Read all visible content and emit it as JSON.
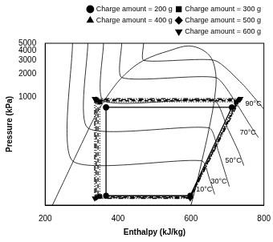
{
  "chart_data": {
    "type": "line",
    "xlabel": "Enthalpy (kJ/kg)",
    "ylabel": "Pressure (kPa)",
    "log": "y",
    "grid": false,
    "legend": "top-right",
    "xlim": [
      200,
      800
    ],
    "xticks": [
      200,
      400,
      600,
      800
    ],
    "ylim": [
      40,
      5000
    ],
    "yticks": [
      1000,
      2000,
      3000,
      4000,
      5000
    ],
    "series": [
      {
        "name": "Charge amount = 200 g",
        "color": "#000000",
        "marker": "circle",
        "line_style": "solid",
        "x": [
          367,
          367,
          598,
          712,
          367
        ],
        "values": [
          740,
          53,
          53,
          740,
          740
        ]
      },
      {
        "name": "Charge amount = 300 g",
        "color": "#000000",
        "marker": "square",
        "line_style": "dotted",
        "x": [
          350,
          350,
          598,
          724,
          350
        ],
        "values": [
          870,
          52,
          52,
          870,
          870
        ]
      },
      {
        "name": "Charge amount = 400 g",
        "color": "#000000",
        "marker": "triangle",
        "line_style": "dashed",
        "x": [
          345,
          345,
          598,
          728,
          345
        ],
        "values": [
          900,
          51,
          51,
          900,
          900
        ]
      },
      {
        "name": "Charge amount = 500 g",
        "color": "#000000",
        "marker": "diamond",
        "line_style": "dash-dot",
        "x": [
          340,
          340,
          598,
          732,
          340
        ],
        "values": [
          930,
          50,
          50,
          930,
          930
        ]
      },
      {
        "name": "Charge amount = 600 g",
        "color": "#000000",
        "marker": "triangle-down",
        "line_style": "dash-dot-dot",
        "x": [
          336,
          336,
          598,
          736,
          336
        ],
        "values": [
          960,
          49,
          49,
          960,
          960
        ]
      }
    ],
    "saturation_dome": {
      "color": "#000000",
      "x": [
        220,
        260,
        300,
        340,
        380,
        420,
        470,
        540,
        600,
        650,
        668,
        665,
        650,
        630,
        610,
        600
      ],
      "values": [
        40,
        100,
        250,
        600,
        1200,
        2000,
        3000,
        4000,
        4600,
        3500,
        2000,
        1000,
        400,
        150,
        60,
        40
      ]
    },
    "isotherms": [
      {
        "name": "10°C",
        "color": "#000000",
        "x": [
          275,
          275,
          630,
          650,
          665
        ],
        "values": [
          5000,
          150,
          150,
          90,
          55
        ]
      },
      {
        "name": "30°C",
        "color": "#000000",
        "x": [
          317,
          317,
          650,
          675,
          695,
          705
        ],
        "values": [
          5000,
          400,
          400,
          200,
          100,
          70
        ]
      },
      {
        "name": "50°C",
        "color": "#000000",
        "x": [
          360,
          360,
          664,
          700,
          730,
          745
        ],
        "values": [
          5000,
          900,
          900,
          400,
          200,
          130
        ]
      },
      {
        "name": "70°C",
        "color": "#000000",
        "x": [
          410,
          410,
          668,
          720,
          760,
          785
        ],
        "values": [
          5000,
          1800,
          1800,
          900,
          450,
          300
        ]
      },
      {
        "name": "90°C",
        "color": "#000000",
        "x": [
          470,
          470,
          665,
          740,
          790,
          800
        ],
        "values": [
          5000,
          3000,
          3000,
          1500,
          800,
          700
        ]
      }
    ]
  }
}
